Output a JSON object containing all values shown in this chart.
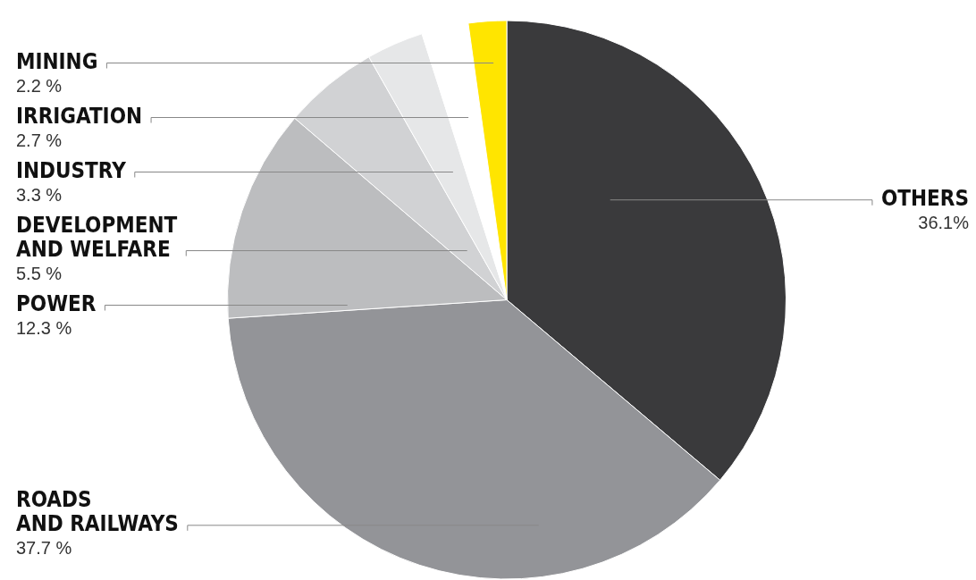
{
  "chart_data": {
    "type": "pie",
    "categories": [
      "OTHERS",
      "ROADS\nAND RAILWAYS",
      "POWER",
      "DEVELOPMENT\nAND WELFARE",
      "INDUSTRY",
      "IRRIGATION",
      "MINING"
    ],
    "values": [
      36.1,
      37.7,
      12.3,
      5.5,
      3.3,
      2.7,
      2.2
    ],
    "value_labels": [
      "36.1%",
      "37.7 %",
      "12.3 %",
      "5.5 %",
      "3.3 %",
      "2.7 %",
      "2.2 %"
    ],
    "colors": [
      "#3a3a3c",
      "#939498",
      "#bcbdbf",
      "#d1d2d4",
      "#e6e7e8",
      "#ffffff",
      "#ffe500"
    ],
    "legend": false
  }
}
